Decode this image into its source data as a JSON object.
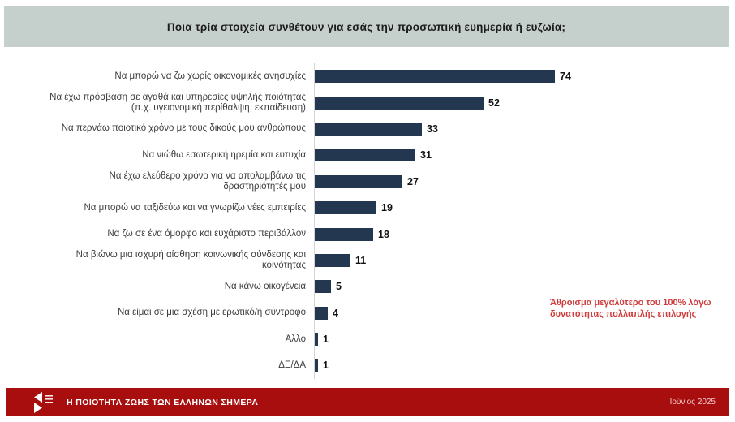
{
  "header": {
    "title": "Ποια τρία στοιχεία συνθέτουν για εσάς την προσωπική ευημερία ή ευζωία;",
    "background": "#c5cfcc"
  },
  "chart_data": {
    "type": "bar",
    "orientation": "horizontal",
    "title": "Ποια τρία στοιχεία συνθέτουν για εσάς την προσωπική ευημερία ή ευζωία;",
    "categories": [
      "Να μπορώ να ζω χωρίς οικονομικές ανησυχίες",
      "Να έχω πρόσβαση σε αγαθά και υπηρεσίες υψηλής ποιότητας (π.χ. υγειονομική περίθαλψη, εκπαίδευση)",
      "Να περνάω ποιοτικό χρόνο με τους δικούς μου ανθρώπους",
      "Να νιώθω εσωτερική ηρεμία και ευτυχία",
      "Να έχω ελεύθερο χρόνο για να απολαμβάνω τις δραστηριότητές μου",
      "Να μπορώ να ταξιδεύω και να γνωρίζω νέες εμπειρίες",
      "Να ζω σε ένα όμορφο και ευχάριστο περιβάλλον",
      "Να βιώνω μια ισχυρή αίσθηση κοινωνικής σύνδεσης και κοινότητας",
      "Να κάνω οικογένεια",
      "Να είμαι σε μια σχέση με ερωτικό/ή σύντροφο",
      "Άλλο",
      "ΔΞ/ΔΑ"
    ],
    "values": [
      74,
      52,
      33,
      31,
      27,
      19,
      18,
      11,
      5,
      4,
      1,
      1
    ],
    "value_labels": true,
    "xlim": [
      0,
      80
    ],
    "grid": false,
    "bar_color": "#243751",
    "annotation": "Άθροισμα μεγαλύτερο του 100% λόγω δυνατότητας πολλαπλής επιλογής",
    "annotation_color": "#cf3a3a"
  },
  "footer": {
    "title": "Η ΠΟΙΟΤΗΤΑ ΖΩΗΣ ΤΩΝ ΕΛΛΗΝΩΝ ΣΗΜΕΡΑ",
    "date": "Ιούνιος 2025",
    "background": "#a90e0e",
    "logo": "kappa-research-logo"
  }
}
